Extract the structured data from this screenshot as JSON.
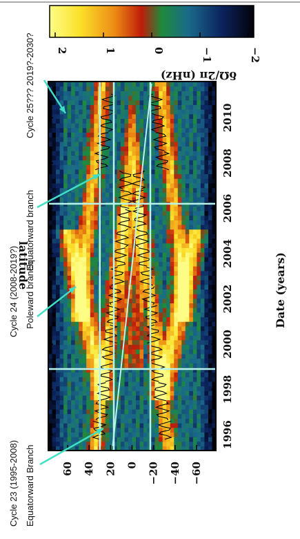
{
  "chart_data": {
    "type": "heatmap",
    "orientation": "rotated-90-clockwise",
    "xlabel": "Date (years)",
    "ylabel": "latitude",
    "x_ticks": [
      "1996",
      "1998",
      "2000",
      "2002",
      "2004",
      "2006",
      "2008",
      "2010"
    ],
    "y_ticks": [
      "60",
      "40",
      "20",
      "0",
      "−20",
      "−40",
      "−60"
    ],
    "xlim": [
      1995.3,
      2011.6
    ],
    "ylim": [
      -78,
      78
    ],
    "colorbar": {
      "label": "δΩ/2π  (nHz)",
      "ticks": [
        "2",
        "1",
        "0",
        "−1",
        "−2"
      ],
      "range": [
        -2,
        2
      ],
      "stops": [
        "#fdfd86",
        "#fbe02a",
        "#ec8a14",
        "#bf1c0a",
        "#1e8a3c",
        "#1a6a8a",
        "#0c2460",
        "#020208"
      ]
    },
    "guide_lines": {
      "vertical_dates": [
        1998.9,
        2006.2
      ],
      "horizontal_latitudes": [
        30,
        17,
        -17
      ]
    },
    "annotations": [
      {
        "id": "cycle23",
        "line1": "Cycle 23 (1995-2008)",
        "line2": "Equatorward Branch"
      },
      {
        "id": "cycle24",
        "line1": "Cycle 24 (2008-2019?)",
        "line2": "Poleward branch",
        "line3": "Equatorward branch"
      },
      {
        "id": "cycle25",
        "line1": "Cycle 25??? 2019?-2030?"
      }
    ]
  },
  "colors": {
    "arrow": "#40e0c4",
    "guide": "#b8f4ec"
  }
}
